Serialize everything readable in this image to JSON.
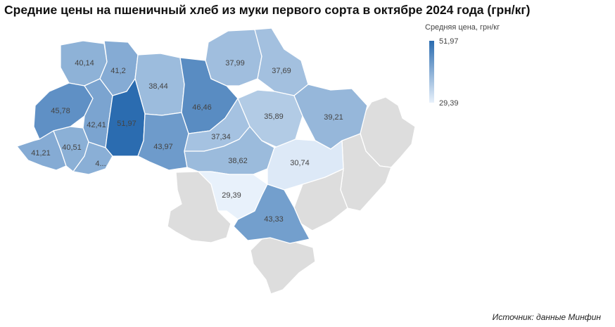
{
  "title": "Средние цены на пшеничный хлеб из муки первого сорта в октябре 2024 года (грн/кг)",
  "legend": {
    "title": "Средняя цена, грн/кг",
    "max_label": "51,97",
    "min_label": "29,39",
    "color_max": "#2b6cb0",
    "color_min": "#e8f1fb"
  },
  "no_data_color": "#dddddd",
  "source": "Источник: данные Минфин",
  "regions": [
    {
      "id": "volyn",
      "label": "40,14",
      "value": 40.14
    },
    {
      "id": "rivne",
      "label": "41,2",
      "value": 41.2
    },
    {
      "id": "zhytomyr",
      "label": "38,44",
      "value": 38.44
    },
    {
      "id": "kyiv",
      "label": "46,46",
      "value": 46.46
    },
    {
      "id": "chernihiv",
      "label": "37,99",
      "value": 37.99
    },
    {
      "id": "sumy",
      "label": "37,69",
      "value": 37.69
    },
    {
      "id": "lviv",
      "label": "45,78",
      "value": 45.78
    },
    {
      "id": "ternopil",
      "label": "42,41",
      "value": 42.41
    },
    {
      "id": "khmelnytskyi",
      "label": "51,97",
      "value": 51.97
    },
    {
      "id": "vinnytsia",
      "label": "43,97",
      "value": 43.97
    },
    {
      "id": "poltava",
      "label": "35,89",
      "value": 35.89
    },
    {
      "id": "kharkiv",
      "label": "39,21",
      "value": 39.21
    },
    {
      "id": "cherkasy",
      "label": "37,34",
      "value": 37.34
    },
    {
      "id": "kirovohrad",
      "label": "38,62",
      "value": 38.62
    },
    {
      "id": "dnipro",
      "label": "30,74",
      "value": 30.74
    },
    {
      "id": "zakarpattia",
      "label": "41,21",
      "value": 41.21
    },
    {
      "id": "ivano-frankivsk",
      "label": "40,51",
      "value": 40.51
    },
    {
      "id": "chernivtsi",
      "label": "4...",
      "value": null
    },
    {
      "id": "mykolaiv",
      "label": "29,39",
      "value": 29.39
    },
    {
      "id": "kherson",
      "label": "43,33",
      "value": 43.33
    }
  ]
}
